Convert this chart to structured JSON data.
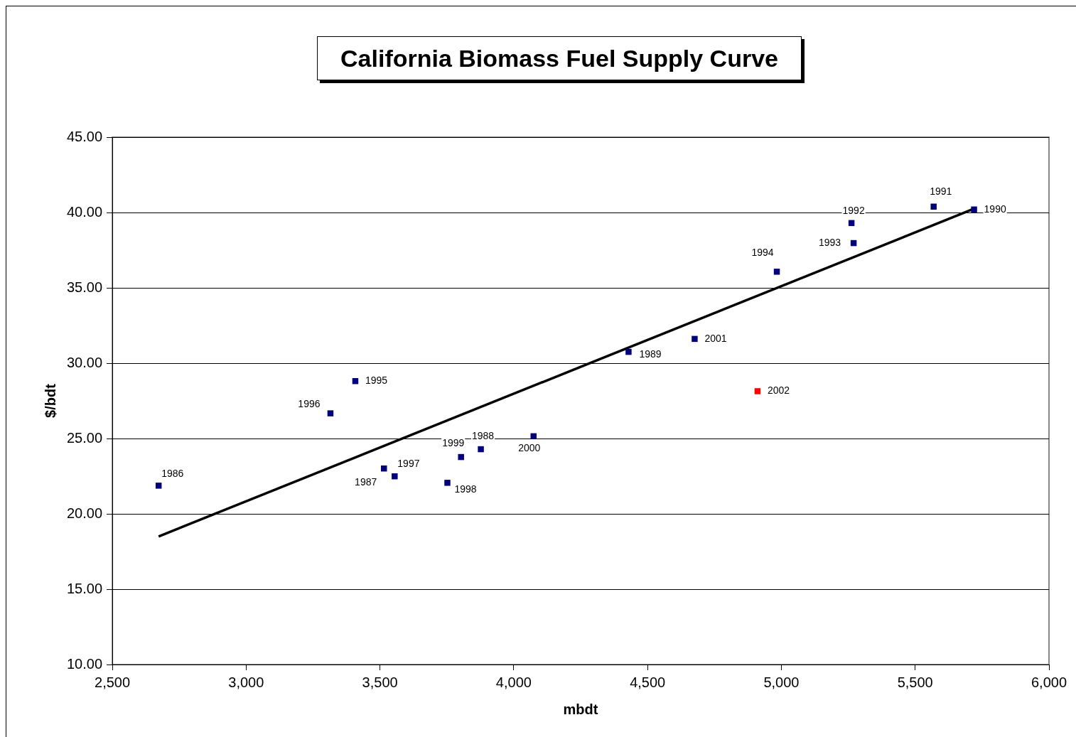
{
  "chart_data": {
    "type": "scatter",
    "title": "California Biomass Fuel Supply Curve",
    "xlabel": "mbdt",
    "ylabel": "$/bdt",
    "xlim": [
      2500,
      6000
    ],
    "xticks": [
      {
        "value": 2500,
        "label": "2,500"
      },
      {
        "value": 3000,
        "label": "3,000"
      },
      {
        "value": 3500,
        "label": "3,500"
      },
      {
        "value": 4000,
        "label": "4,000"
      },
      {
        "value": 4500,
        "label": "4,500"
      },
      {
        "value": 5000,
        "label": "5,000"
      },
      {
        "value": 5500,
        "label": "5,500"
      },
      {
        "value": 6000,
        "label": "6,000"
      }
    ],
    "ylim": [
      10,
      45
    ],
    "yticks": [
      {
        "value": 10,
        "label": "10.00"
      },
      {
        "value": 15,
        "label": "15.00"
      },
      {
        "value": 20,
        "label": "20.00"
      },
      {
        "value": 25,
        "label": "25.00"
      },
      {
        "value": 30,
        "label": "30.00"
      },
      {
        "value": 35,
        "label": "35.00"
      },
      {
        "value": 40,
        "label": "40.00"
      },
      {
        "value": 45,
        "label": "45.00"
      }
    ],
    "grid": "y",
    "legend": false,
    "marker": "square",
    "series": [
      {
        "type": "scatter",
        "x": [
          2673,
          3515,
          3877,
          4429,
          5720,
          5569,
          5262,
          5270,
          4983,
          3408,
          3315,
          3555,
          3752,
          3803,
          4074,
          4676,
          4911
        ],
        "values": [
          21.87,
          23.01,
          24.29,
          30.75,
          40.2,
          40.39,
          39.3,
          37.97,
          36.07,
          28.81,
          26.67,
          22.49,
          22.06,
          23.77,
          25.15,
          31.61,
          28.14
        ],
        "colors": [
          "#000080",
          "#000080",
          "#000080",
          "#000080",
          "#000080",
          "#000080",
          "#000080",
          "#000080",
          "#000080",
          "#000080",
          "#000080",
          "#000080",
          "#000080",
          "#000080",
          "#000080",
          "#000080",
          "#ff0000"
        ]
      },
      {
        "type": "line",
        "x": [
          2673,
          5720
        ],
        "values": [
          18.5,
          40.25
        ],
        "color": "#000000",
        "marker": "none",
        "line_style": "solid"
      }
    ],
    "annotations": [
      {
        "text": "1986",
        "x": 2673,
        "y": 21.87
      },
      {
        "text": "1987",
        "x": 3515,
        "y": 23.01
      },
      {
        "text": "1988",
        "x": 3877,
        "y": 24.29
      },
      {
        "text": "1989",
        "x": 4429,
        "y": 30.75
      },
      {
        "text": "1990",
        "x": 5720,
        "y": 40.2
      },
      {
        "text": "1991",
        "x": 5569,
        "y": 40.39
      },
      {
        "text": "1992",
        "x": 5262,
        "y": 39.3
      },
      {
        "text": "1993",
        "x": 5270,
        "y": 37.97
      },
      {
        "text": "1994",
        "x": 4983,
        "y": 36.07
      },
      {
        "text": "1995",
        "x": 3408,
        "y": 28.81
      },
      {
        "text": "1996",
        "x": 3315,
        "y": 26.67
      },
      {
        "text": "1997",
        "x": 3555,
        "y": 22.49
      },
      {
        "text": "1998",
        "x": 3752,
        "y": 22.06
      },
      {
        "text": "1999",
        "x": 3803,
        "y": 23.77
      },
      {
        "text": "2000",
        "x": 4074,
        "y": 25.15
      },
      {
        "text": "2001",
        "x": 4676,
        "y": 31.61
      },
      {
        "text": "2002",
        "x": 4911,
        "y": 28.14
      }
    ]
  }
}
